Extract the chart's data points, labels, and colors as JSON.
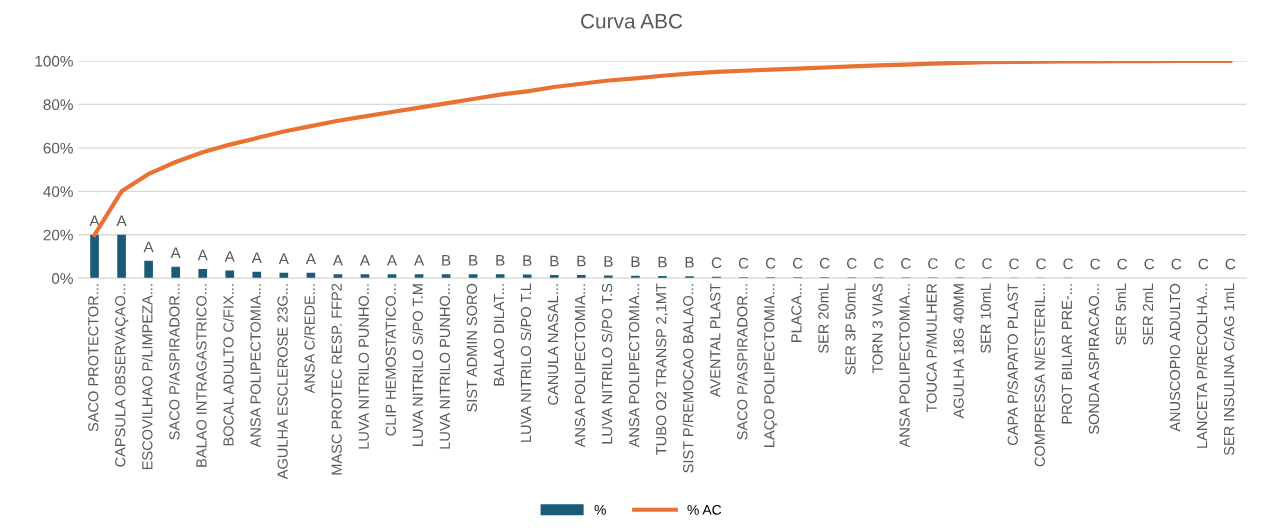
{
  "chart_data": {
    "type": "bar",
    "title": "Curva ABC",
    "categories": [
      "SACO PROTECTOR...",
      "CAPSULA OBSERVAÇAO...",
      "ESCOVILHAO P/LIMPEZA...",
      "SACO P/ASPIRADOR...",
      "BALAO INTRAGASTRICO...",
      "BOCAL ADULTO C/FIX...",
      "ANSA POLIPECTOMIA...",
      "AGULHA ESCLEROSE 23G...",
      "ANSA C/REDE...",
      "MASC PROTEC RESP. FFP2",
      "LUVA NITRILO PUNHO...",
      "CLIP HEMOSTATICO...",
      "LUVA NITRILO S/PO T.M",
      "LUVA NITRILO PUNHO...",
      "SIST ADMIN SORO",
      "BALAO DILAT...",
      "LUVA NITRILO S/PO T.L",
      "CANULA NASAL...",
      "ANSA POLIPECTOMIA...",
      "LUVA NITRILO S/PO T.S",
      "ANSA POLIPECTOMIA...",
      "TUBO O2 TRANSP 2,1MT",
      "SIST P/REMOCAO BALAO...",
      "AVENTAL PLAST",
      "SACO P/ASPIRADOR...",
      "LAÇO POLIPECTOMIA...",
      "PLACA...",
      "SER 20mL",
      "SER 3P 50mL",
      "TORN 3 VIAS",
      "ANSA POLIPECTOMIA...",
      "TOUCA P/MULHER",
      "AGULHA 18G 40MM",
      "SER 10mL",
      "CAPA P/SAPATO PLAST",
      "COMPRESSA N/ESTERIL...",
      "PROT BILIAR PRE-...",
      "SONDA ASPIRACAO...",
      "SER 5mL",
      "SER 2mL",
      "ANUSCOPIO ADULTO",
      "LANCETA P/RECOLHA...",
      "SER INSULINA C/AG 1mL"
    ],
    "series": [
      {
        "name": "%",
        "color": "#1b5b7a",
        "values": [
          20,
          20,
          8,
          5.3,
          4.3,
          3.6,
          3,
          2.5,
          2.5,
          1.8,
          1.8,
          1.8,
          1.8,
          1.8,
          1.8,
          1.8,
          1.7,
          1.5,
          1.5,
          1.3,
          1.2,
          1,
          0.9,
          0.7,
          0.5,
          0.5,
          0.5,
          0.5,
          0.4,
          0.4,
          0.4,
          0.3,
          0.3,
          0.3,
          0.2,
          0.2,
          0.2,
          0.1,
          0.1,
          0.1,
          0.1,
          0.1,
          0.1
        ],
        "value_labels": [
          "A",
          "A",
          "A",
          "A",
          "A",
          "A",
          "A",
          "A",
          "A",
          "A",
          "A",
          "A",
          "A",
          "B",
          "B",
          "B",
          "B",
          "B",
          "B",
          "B",
          "B",
          "B",
          "B",
          "C",
          "C",
          "C",
          "C",
          "C",
          "C",
          "C",
          "C",
          "C",
          "C",
          "C",
          "C",
          "C",
          "C",
          "C",
          "C",
          "C",
          "C",
          "C",
          "C"
        ]
      },
      {
        "name": "% AC",
        "type": "line",
        "color": "#e97132",
        "values": [
          20,
          40,
          48,
          53.5,
          58,
          61.5,
          64.5,
          67.5,
          70,
          72.5,
          74.5,
          76.5,
          78.5,
          80.5,
          82.5,
          84.5,
          86,
          88,
          89.5,
          91,
          92,
          93.2,
          94.2,
          95,
          95.5,
          96,
          96.5,
          97,
          97.5,
          98,
          98.3,
          98.8,
          99.1,
          99.4,
          99.6,
          99.7,
          99.8,
          99.8,
          99.9,
          99.9,
          100,
          100,
          100
        ]
      }
    ],
    "ylim": [
      0,
      100
    ],
    "yticks": [
      {
        "value": 0,
        "label": "0%"
      },
      {
        "value": 20,
        "label": "20%"
      },
      {
        "value": 40,
        "label": "40%"
      },
      {
        "value": 60,
        "label": "60%"
      },
      {
        "value": 80,
        "label": "80%"
      },
      {
        "value": 100,
        "label": "100%"
      }
    ],
    "grid": "y",
    "legend": "bottom",
    "marker": "none"
  }
}
